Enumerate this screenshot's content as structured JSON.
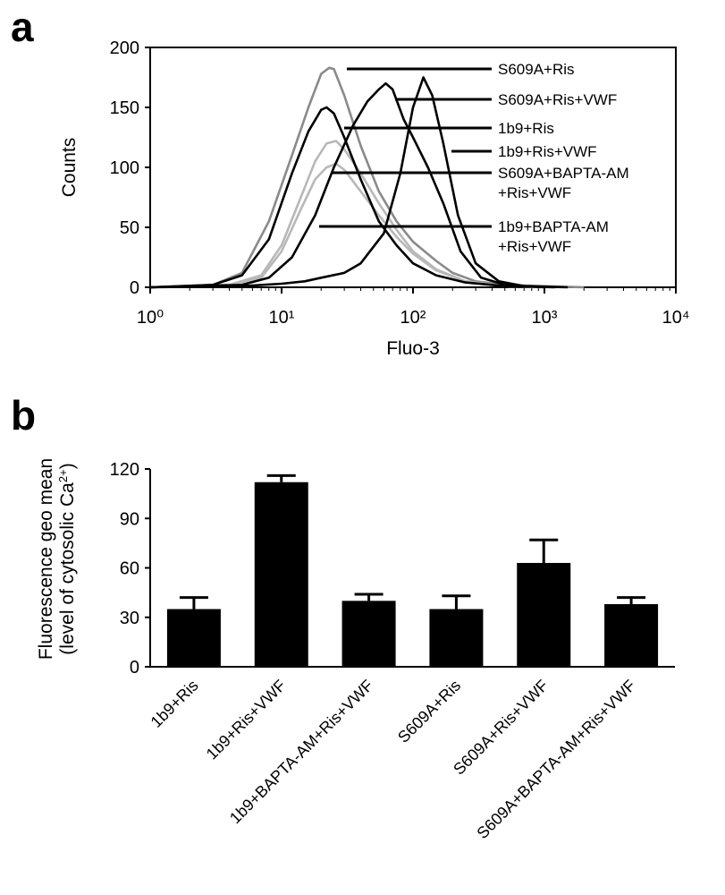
{
  "panel_labels": {
    "a": "a",
    "b": "b"
  },
  "chart_data": [
    {
      "id": "a",
      "type": "line",
      "x_scale": "log",
      "xlabel": "Fluo-3",
      "ylabel": "Counts",
      "xlim": [
        1,
        10000
      ],
      "ylim": [
        0,
        200
      ],
      "x_ticks": [
        1,
        10,
        100,
        1000,
        10000
      ],
      "y_ticks": [
        0,
        50,
        100,
        150,
        200
      ],
      "series": [
        {
          "name": "S609A+Ris",
          "color": "#8a8a8a",
          "points": [
            [
              1,
              0
            ],
            [
              3,
              2
            ],
            [
              5,
              12
            ],
            [
              8,
              55
            ],
            [
              12,
              110
            ],
            [
              16,
              150
            ],
            [
              20,
              178
            ],
            [
              23,
              183
            ],
            [
              25,
              182
            ],
            [
              30,
              160
            ],
            [
              40,
              118
            ],
            [
              55,
              80
            ],
            [
              75,
              55
            ],
            [
              100,
              38
            ],
            [
              150,
              22
            ],
            [
              200,
              12
            ],
            [
              300,
              5
            ],
            [
              500,
              2
            ],
            [
              1000,
              1
            ],
            [
              2000,
              0
            ]
          ]
        },
        {
          "name": "S609A+Ris+VWF",
          "color": "#000000",
          "points": [
            [
              1,
              0
            ],
            [
              5,
              1
            ],
            [
              10,
              3
            ],
            [
              15,
              5
            ],
            [
              20,
              8
            ],
            [
              30,
              12
            ],
            [
              40,
              20
            ],
            [
              60,
              45
            ],
            [
              80,
              95
            ],
            [
              100,
              150
            ],
            [
              120,
              175
            ],
            [
              140,
              160
            ],
            [
              170,
              120
            ],
            [
              220,
              60
            ],
            [
              300,
              20
            ],
            [
              450,
              5
            ],
            [
              700,
              1
            ],
            [
              1500,
              0
            ]
          ]
        },
        {
          "name": "1b9+Ris",
          "color": "#000000",
          "points": [
            [
              1,
              0
            ],
            [
              3,
              2
            ],
            [
              5,
              10
            ],
            [
              8,
              40
            ],
            [
              12,
              95
            ],
            [
              16,
              130
            ],
            [
              20,
              148
            ],
            [
              22,
              150
            ],
            [
              25,
              145
            ],
            [
              30,
              125
            ],
            [
              40,
              90
            ],
            [
              55,
              55
            ],
            [
              75,
              35
            ],
            [
              100,
              20
            ],
            [
              150,
              10
            ],
            [
              250,
              4
            ],
            [
              500,
              1
            ],
            [
              1200,
              0
            ]
          ]
        },
        {
          "name": "1b9+Ris+VWF",
          "color": "#000000",
          "points": [
            [
              1,
              0
            ],
            [
              5,
              2
            ],
            [
              8,
              8
            ],
            [
              12,
              25
            ],
            [
              18,
              60
            ],
            [
              25,
              100
            ],
            [
              35,
              135
            ],
            [
              45,
              155
            ],
            [
              55,
              165
            ],
            [
              62,
              170
            ],
            [
              70,
              165
            ],
            [
              85,
              140
            ],
            [
              100,
              125
            ],
            [
              130,
              100
            ],
            [
              170,
              70
            ],
            [
              230,
              30
            ],
            [
              330,
              8
            ],
            [
              500,
              2
            ],
            [
              1000,
              0
            ]
          ]
        },
        {
          "name": "S609A+BAPTA-AM +Ris+VWF",
          "color": "#b8b8b8",
          "points": [
            [
              1,
              0
            ],
            [
              4,
              2
            ],
            [
              7,
              10
            ],
            [
              10,
              35
            ],
            [
              14,
              75
            ],
            [
              18,
              105
            ],
            [
              22,
              120
            ],
            [
              26,
              122
            ],
            [
              30,
              115
            ],
            [
              40,
              95
            ],
            [
              55,
              70
            ],
            [
              75,
              48
            ],
            [
              100,
              30
            ],
            [
              150,
              15
            ],
            [
              250,
              5
            ],
            [
              500,
              1
            ],
            [
              1000,
              0
            ]
          ]
        },
        {
          "name": "1b9+BAPTA-AM +Ris+VWF",
          "color": "#b8b8b8",
          "points": [
            [
              1,
              0
            ],
            [
              4,
              2
            ],
            [
              7,
              8
            ],
            [
              10,
              30
            ],
            [
              14,
              65
            ],
            [
              18,
              90
            ],
            [
              22,
              100
            ],
            [
              26,
              103
            ],
            [
              30,
              98
            ],
            [
              40,
              80
            ],
            [
              55,
              60
            ],
            [
              75,
              42
            ],
            [
              100,
              28
            ],
            [
              150,
              14
            ],
            [
              250,
              5
            ],
            [
              500,
              1
            ],
            [
              1000,
              0
            ]
          ]
        }
      ],
      "legend_labels": [
        {
          "lines": [
            "S609A+Ris"
          ]
        },
        {
          "lines": [
            "S609A+Ris+VWF"
          ]
        },
        {
          "lines": [
            "1b9+Ris"
          ]
        },
        {
          "lines": [
            "1b9+Ris+VWF"
          ]
        },
        {
          "lines": [
            "S609A+BAPTA-AM",
            "+Ris+VWF"
          ]
        },
        {
          "lines": [
            "1b9+BAPTA-AM",
            "+Ris+VWF"
          ]
        }
      ]
    },
    {
      "id": "b",
      "type": "bar",
      "ylabel_lines": [
        "Fluorescence geo mean",
        "(level of cytosolic Ca"
      ],
      "ylabel_superscript": "2+",
      "ylabel_suffix": ")",
      "ylim": [
        0,
        120
      ],
      "y_ticks": [
        0,
        30,
        60,
        90,
        120
      ],
      "categories": [
        "1b9+Ris",
        "1b9+Ris+VWF",
        "1b9+BAPTA-AM+Ris+VWF",
        "S609A+Ris",
        "S609A+Ris+VWF",
        "S609A+BAPTA-AM+Ris+VWF"
      ],
      "values": [
        35,
        112,
        40,
        35,
        63,
        38
      ],
      "errors": [
        7,
        4,
        4,
        8,
        14,
        4
      ],
      "bar_color": "#000000"
    }
  ]
}
